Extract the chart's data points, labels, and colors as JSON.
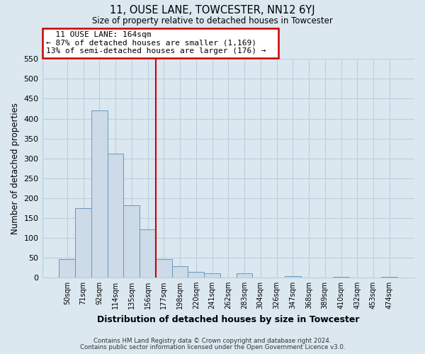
{
  "title": "11, OUSE LANE, TOWCESTER, NN12 6YJ",
  "subtitle": "Size of property relative to detached houses in Towcester",
  "xlabel": "Distribution of detached houses by size in Towcester",
  "ylabel": "Number of detached properties",
  "bar_labels": [
    "50sqm",
    "71sqm",
    "92sqm",
    "114sqm",
    "135sqm",
    "156sqm",
    "177sqm",
    "198sqm",
    "220sqm",
    "241sqm",
    "262sqm",
    "283sqm",
    "304sqm",
    "326sqm",
    "347sqm",
    "368sqm",
    "389sqm",
    "410sqm",
    "432sqm",
    "453sqm",
    "474sqm"
  ],
  "bar_values": [
    47,
    174,
    420,
    311,
    182,
    121,
    47,
    28,
    14,
    11,
    0,
    11,
    0,
    0,
    3,
    0,
    0,
    2,
    0,
    0,
    2
  ],
  "bar_color": "#cddae8",
  "bar_edge_color": "#6699bb",
  "property_line_x": 5.5,
  "annotation_line1": "11 OUSE LANE: 164sqm",
  "annotation_line2": "← 87% of detached houses are smaller (1,169)",
  "annotation_line3": "13% of semi-detached houses are larger (176) →",
  "annotation_box_color": "#ffffff",
  "annotation_box_edge": "#cc0000",
  "vline_color": "#cc0000",
  "ylim": [
    0,
    550
  ],
  "yticks": [
    0,
    50,
    100,
    150,
    200,
    250,
    300,
    350,
    400,
    450,
    500,
    550
  ],
  "grid_color": "#b8cfe0",
  "background_color": "#dce8f0",
  "plot_bg_color": "#dce8f0",
  "footnote1": "Contains HM Land Registry data © Crown copyright and database right 2024.",
  "footnote2": "Contains public sector information licensed under the Open Government Licence v3.0."
}
